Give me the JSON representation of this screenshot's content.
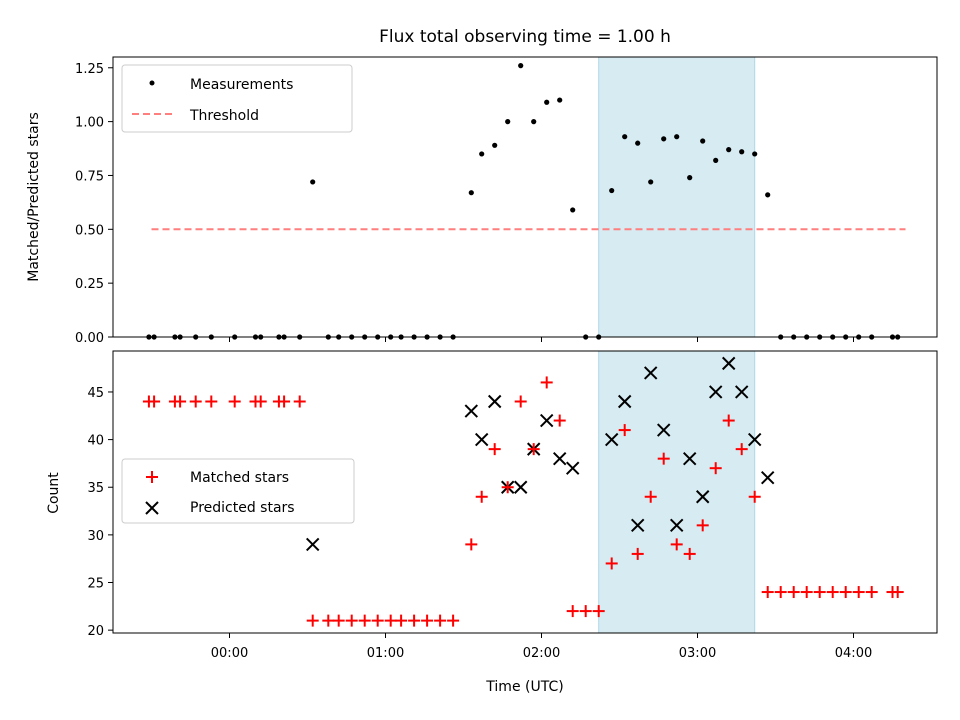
{
  "title": "Flux total observing time = 1.00 h",
  "xlabel": "Time (UTC)",
  "xtick_labels": [
    "00:00",
    "01:00",
    "02:00",
    "03:00",
    "04:00"
  ],
  "colors": {
    "measurements": "#000000",
    "threshold": "#ff7f7f",
    "matched": "#ff0000",
    "predicted": "#000000",
    "highlight": "#add8e6"
  },
  "chart_data": [
    {
      "type": "scatter",
      "ylabel": "Matched/Predicted stars",
      "ylim": [
        0,
        1.3
      ],
      "yticks": [
        0.0,
        0.25,
        0.5,
        0.75,
        1.0,
        1.25
      ],
      "ytick_labels": [
        "0.00",
        "0.25",
        "0.50",
        "0.75",
        "1.00",
        "1.25"
      ],
      "legend": [
        "Measurements",
        "Threshold"
      ],
      "legend_position": "upper-left",
      "highlight_span": [
        "02:22",
        "03:22"
      ],
      "threshold": {
        "name": "Threshold",
        "y": 0.5,
        "x": [
          "23:30",
          "04:20"
        ]
      },
      "series": [
        {
          "name": "Measurements",
          "x": [
            "23:29",
            "23:31",
            "23:39",
            "23:41",
            "23:47",
            "23:53",
            "00:02",
            "00:10",
            "00:12",
            "00:19",
            "00:21",
            "00:27",
            "00:32",
            "00:38",
            "00:42",
            "00:47",
            "00:52",
            "00:57",
            "01:02",
            "01:06",
            "01:11",
            "01:16",
            "01:21",
            "01:26",
            "01:33",
            "01:37",
            "01:42",
            "01:47",
            "01:52",
            "01:57",
            "02:02",
            "02:07",
            "02:12",
            "02:17",
            "02:22",
            "02:27",
            "02:32",
            "02:37",
            "02:42",
            "02:47",
            "02:52",
            "02:57",
            "03:02",
            "03:07",
            "03:12",
            "03:17",
            "03:22",
            "03:27",
            "03:32",
            "03:37",
            "03:42",
            "03:47",
            "03:52",
            "03:57",
            "04:02",
            "04:07",
            "04:15",
            "04:17"
          ],
          "y": [
            0,
            0,
            0,
            0,
            0,
            0,
            0,
            0,
            0,
            0,
            0,
            0,
            0.72,
            0,
            0,
            0,
            0,
            0,
            0,
            0,
            0,
            0,
            0,
            0,
            0.67,
            0.85,
            0.89,
            1.0,
            1.26,
            1.0,
            1.09,
            1.1,
            0.59,
            0,
            0,
            0.68,
            0.93,
            0.9,
            0.72,
            0.92,
            0.93,
            0.74,
            0.91,
            0.82,
            0.87,
            0.86,
            0.85,
            0.66,
            0,
            0,
            0,
            0,
            0,
            0,
            0,
            0,
            0,
            0
          ]
        }
      ]
    },
    {
      "type": "scatter",
      "ylabel": "Count",
      "ylim": [
        19.7,
        49.3
      ],
      "yticks": [
        20,
        25,
        30,
        35,
        40,
        45
      ],
      "ytick_labels": [
        "20",
        "25",
        "30",
        "35",
        "40",
        "45"
      ],
      "legend": [
        "Matched stars",
        "Predicted stars"
      ],
      "legend_position": "center-left",
      "highlight_span": [
        "02:22",
        "03:22"
      ],
      "series": [
        {
          "name": "Matched stars",
          "x": [
            "23:29",
            "23:31",
            "23:39",
            "23:41",
            "23:47",
            "23:53",
            "00:02",
            "00:10",
            "00:12",
            "00:19",
            "00:21",
            "00:27",
            "00:32",
            "00:38",
            "00:42",
            "00:47",
            "00:52",
            "00:57",
            "01:02",
            "01:06",
            "01:11",
            "01:16",
            "01:21",
            "01:26",
            "01:33",
            "01:37",
            "01:42",
            "01:47",
            "01:52",
            "01:57",
            "02:02",
            "02:07",
            "02:12",
            "02:17",
            "02:22",
            "02:27",
            "02:32",
            "02:37",
            "02:42",
            "02:47",
            "02:52",
            "02:57",
            "03:02",
            "03:07",
            "03:12",
            "03:17",
            "03:22",
            "03:27",
            "03:32",
            "03:37",
            "03:42",
            "03:47",
            "03:52",
            "03:57",
            "04:02",
            "04:07",
            "04:15",
            "04:17"
          ],
          "y": [
            44,
            44,
            44,
            44,
            44,
            44,
            44,
            44,
            44,
            44,
            44,
            44,
            21,
            21,
            21,
            21,
            21,
            21,
            21,
            21,
            21,
            21,
            21,
            21,
            29,
            34,
            39,
            35,
            44,
            39,
            46,
            42,
            22,
            22,
            22,
            27,
            41,
            28,
            34,
            38,
            29,
            28,
            31,
            37,
            42,
            39,
            34,
            24,
            24,
            24,
            24,
            24,
            24,
            24,
            24,
            24,
            24,
            24
          ]
        },
        {
          "name": "Predicted stars",
          "x": [
            "00:32",
            "01:33",
            "01:37",
            "01:42",
            "01:47",
            "01:52",
            "01:57",
            "02:02",
            "02:07",
            "02:12",
            "02:27",
            "02:32",
            "02:37",
            "02:42",
            "02:47",
            "02:52",
            "02:57",
            "03:02",
            "03:07",
            "03:12",
            "03:17",
            "03:22",
            "03:27"
          ],
          "y": [
            29,
            43,
            40,
            44,
            35,
            35,
            39,
            42,
            38,
            37,
            40,
            44,
            31,
            47,
            41,
            31,
            38,
            34,
            45,
            48,
            45,
            40,
            36
          ]
        }
      ]
    }
  ]
}
